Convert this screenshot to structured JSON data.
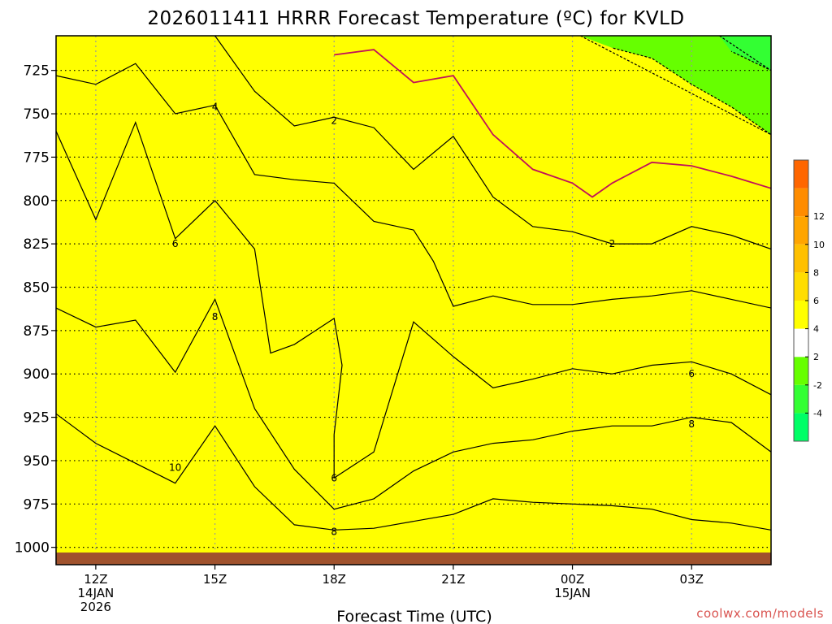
{
  "chart_data": {
    "type": "contour",
    "title": "2026011411 HRRR Forecast Temperature (ºC) for KVLD",
    "xlabel": "Forecast Time (UTC)",
    "ylabel": "",
    "x_unit": "hours after 2026011411",
    "xlim": [
      0,
      18
    ],
    "ylim": [
      1010,
      705
    ],
    "x_ticks": [
      {
        "x": 1,
        "label": "12Z",
        "sub1": "14JAN",
        "sub2": "2026"
      },
      {
        "x": 4,
        "label": "15Z",
        "sub1": "",
        "sub2": ""
      },
      {
        "x": 7,
        "label": "18Z",
        "sub1": "",
        "sub2": ""
      },
      {
        "x": 10,
        "label": "21Z",
        "sub1": "",
        "sub2": ""
      },
      {
        "x": 13,
        "label": "00Z",
        "sub1": "15JAN",
        "sub2": ""
      },
      {
        "x": 16,
        "label": "03Z",
        "sub1": "",
        "sub2": ""
      }
    ],
    "y_ticks": [
      725,
      750,
      775,
      800,
      825,
      850,
      875,
      900,
      925,
      950,
      975,
      1000
    ],
    "surface_pressure_mb": 1003,
    "colorbar": {
      "levels": [
        -6,
        -4,
        -2,
        2,
        4,
        6,
        8,
        10,
        12,
        14
      ],
      "tick_labels": [
        "-4",
        "-2",
        "2",
        "4",
        "6",
        "8",
        "10",
        "12"
      ],
      "colors": [
        "#00ff66",
        "#33ff33",
        "#66ff00",
        "#ffffff",
        "#ffff00",
        "#ffdd00",
        "#ffc000",
        "#ffa500",
        "#ff8c00",
        "#ff6600"
      ]
    },
    "contours": [
      {
        "level": 10,
        "fill": "#ff8c00",
        "label": "10",
        "points": [
          [
            0,
            923
          ],
          [
            1,
            940
          ],
          [
            3,
            963
          ],
          [
            4,
            930
          ],
          [
            5,
            965
          ],
          [
            6,
            987
          ],
          [
            7,
            990
          ],
          [
            8,
            989
          ],
          [
            10,
            981
          ],
          [
            11,
            972
          ],
          [
            12,
            974
          ],
          [
            14,
            976
          ],
          [
            15,
            978
          ],
          [
            16,
            984
          ],
          [
            17,
            986
          ],
          [
            18,
            990
          ],
          [
            18,
            1003
          ],
          [
            0,
            1003
          ]
        ]
      },
      {
        "level": 8,
        "fill": "#ffa500",
        "label": "8",
        "points": [
          [
            0,
            862
          ],
          [
            1,
            873
          ],
          [
            2,
            869
          ],
          [
            3,
            899
          ],
          [
            4,
            857
          ],
          [
            5,
            920
          ],
          [
            6,
            955
          ],
          [
            7,
            978
          ],
          [
            8,
            972
          ],
          [
            9,
            956
          ],
          [
            10,
            945
          ],
          [
            11,
            940
          ],
          [
            12,
            938
          ],
          [
            13,
            933
          ],
          [
            14,
            930
          ],
          [
            15,
            930
          ],
          [
            16,
            925
          ],
          [
            17,
            928
          ],
          [
            18,
            945
          ],
          [
            18,
            1003
          ],
          [
            0,
            1003
          ]
        ]
      },
      {
        "level": 6,
        "fill": "#ffc000",
        "label": "6",
        "points": [
          [
            0,
            760
          ],
          [
            1,
            811
          ],
          [
            2,
            755
          ],
          [
            3,
            822
          ],
          [
            4,
            800
          ],
          [
            5,
            828
          ],
          [
            5.4,
            888
          ],
          [
            6,
            883
          ],
          [
            7,
            868
          ],
          [
            7.2,
            895
          ],
          [
            7,
            935
          ],
          [
            7,
            960
          ],
          [
            8,
            945
          ],
          [
            9,
            870
          ],
          [
            10,
            890
          ],
          [
            11,
            908
          ],
          [
            12,
            903
          ],
          [
            13,
            897
          ],
          [
            14,
            900
          ],
          [
            15,
            895
          ],
          [
            16,
            893
          ],
          [
            17,
            900
          ],
          [
            18,
            912
          ],
          [
            18,
            1003
          ],
          [
            0,
            1003
          ]
        ]
      },
      {
        "level": 4,
        "fill": "#ffdd00",
        "label": "4",
        "points": [
          [
            0,
            728
          ],
          [
            1,
            733
          ],
          [
            2,
            721
          ],
          [
            3,
            750
          ],
          [
            4,
            745
          ],
          [
            5,
            785
          ],
          [
            6,
            788
          ],
          [
            7,
            790
          ],
          [
            8,
            812
          ],
          [
            9,
            817
          ],
          [
            9.5,
            835
          ],
          [
            10,
            861
          ],
          [
            11,
            855
          ],
          [
            12,
            860
          ],
          [
            13,
            860
          ],
          [
            14,
            857
          ],
          [
            15,
            855
          ],
          [
            16,
            852
          ],
          [
            17,
            857
          ],
          [
            18,
            862
          ],
          [
            18,
            1003
          ],
          [
            0,
            1003
          ]
        ]
      },
      {
        "level": 2,
        "fill": "#ffff00",
        "label": "2",
        "points": [
          [
            0,
            705
          ],
          [
            4,
            705
          ],
          [
            5,
            737
          ],
          [
            6,
            757
          ],
          [
            7,
            752
          ],
          [
            8,
            758
          ],
          [
            9,
            782
          ],
          [
            10,
            763
          ],
          [
            11,
            798
          ],
          [
            12,
            815
          ],
          [
            13,
            818
          ],
          [
            14,
            825
          ],
          [
            15,
            825
          ],
          [
            16,
            815
          ],
          [
            17,
            820
          ],
          [
            18,
            828
          ],
          [
            18,
            1003
          ],
          [
            0,
            1003
          ]
        ]
      },
      {
        "level": -2,
        "fill": "#66ff00",
        "label": "",
        "points": [
          [
            13.2,
            705
          ],
          [
            18,
            705
          ],
          [
            18,
            762
          ],
          [
            17,
            746
          ],
          [
            16,
            733
          ],
          [
            15,
            718
          ],
          [
            14,
            712
          ]
        ]
      },
      {
        "level": -4,
        "fill": "#33ff33",
        "label": "",
        "points": [
          [
            16.7,
            705
          ],
          [
            18,
            705
          ],
          [
            18,
            725
          ],
          [
            17,
            714
          ]
        ]
      }
    ],
    "freezing_line": {
      "level": 0,
      "color": "#c0105b",
      "points": [
        [
          7,
          716
        ],
        [
          8,
          713
        ],
        [
          9,
          732
        ],
        [
          10,
          728
        ],
        [
          11,
          762
        ],
        [
          12,
          782
        ],
        [
          13,
          790
        ],
        [
          13.5,
          798
        ],
        [
          14,
          790
        ],
        [
          15,
          778
        ],
        [
          16,
          780
        ],
        [
          17,
          786
        ],
        [
          18,
          793
        ]
      ]
    },
    "contour_labels": [
      {
        "x": 4,
        "p": 746,
        "text": "4"
      },
      {
        "x": 7,
        "p": 754,
        "text": "2"
      },
      {
        "x": 3,
        "p": 825,
        "text": "6"
      },
      {
        "x": 4,
        "p": 867,
        "text": "8"
      },
      {
        "x": 3,
        "p": 954,
        "text": "10"
      },
      {
        "x": 7,
        "p": 960,
        "text": "6"
      },
      {
        "x": 7,
        "p": 991,
        "text": "8"
      },
      {
        "x": 14,
        "p": 825,
        "text": "2"
      },
      {
        "x": 16,
        "p": 900,
        "text": "6"
      },
      {
        "x": 16,
        "p": 929,
        "text": "8"
      }
    ]
  },
  "credit": "coolwx.com/models"
}
